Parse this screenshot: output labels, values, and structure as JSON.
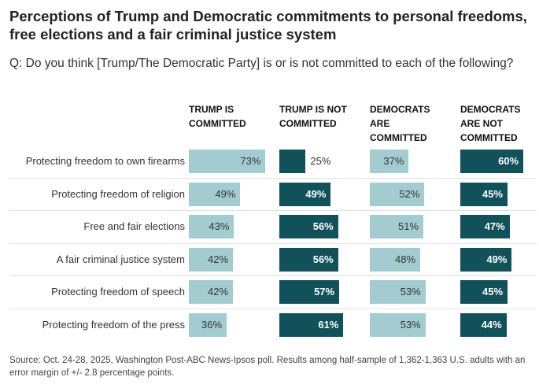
{
  "chart_data": {
    "type": "table",
    "title": "Perceptions of Trump and Democratic commitments to personal freedoms, free elections and a fair criminal justice system",
    "subtitle": "Q: Do you think [Trump/The Democratic Party] is or is not committed to each of the following?",
    "columns": [
      {
        "label": "TRUMP IS COMMITTED",
        "color": "#a3ccd1"
      },
      {
        "label": "TRUMP IS NOT COMMITTED",
        "color": "#11525a"
      },
      {
        "label": "DEMOCRATS ARE COMMITTED",
        "color": "#a3ccd1"
      },
      {
        "label": "DEMOCRATS ARE NOT COMMITTED",
        "color": "#11525a"
      }
    ],
    "rows": [
      {
        "label": "Protecting freedom to own firearms",
        "values": [
          73,
          25,
          37,
          60
        ]
      },
      {
        "label": "Protecting freedom of religion",
        "values": [
          49,
          49,
          52,
          45
        ]
      },
      {
        "label": "Free and fair elections",
        "values": [
          43,
          56,
          51,
          47
        ]
      },
      {
        "label": "A fair criminal justice system",
        "values": [
          42,
          56,
          48,
          49
        ]
      },
      {
        "label": "Protecting freedom of speech",
        "values": [
          42,
          57,
          53,
          45
        ]
      },
      {
        "label": "Protecting freedom of the press",
        "values": [
          36,
          61,
          53,
          44
        ]
      }
    ],
    "value_suffix": "%",
    "source": "Source: Oct. 24-28, 2025, Washington Post-ABC News-Ipsos poll. Results among half-sample of 1,362-1,363 U.S. adults with an error margin of +/- 2.8 percentage points."
  }
}
